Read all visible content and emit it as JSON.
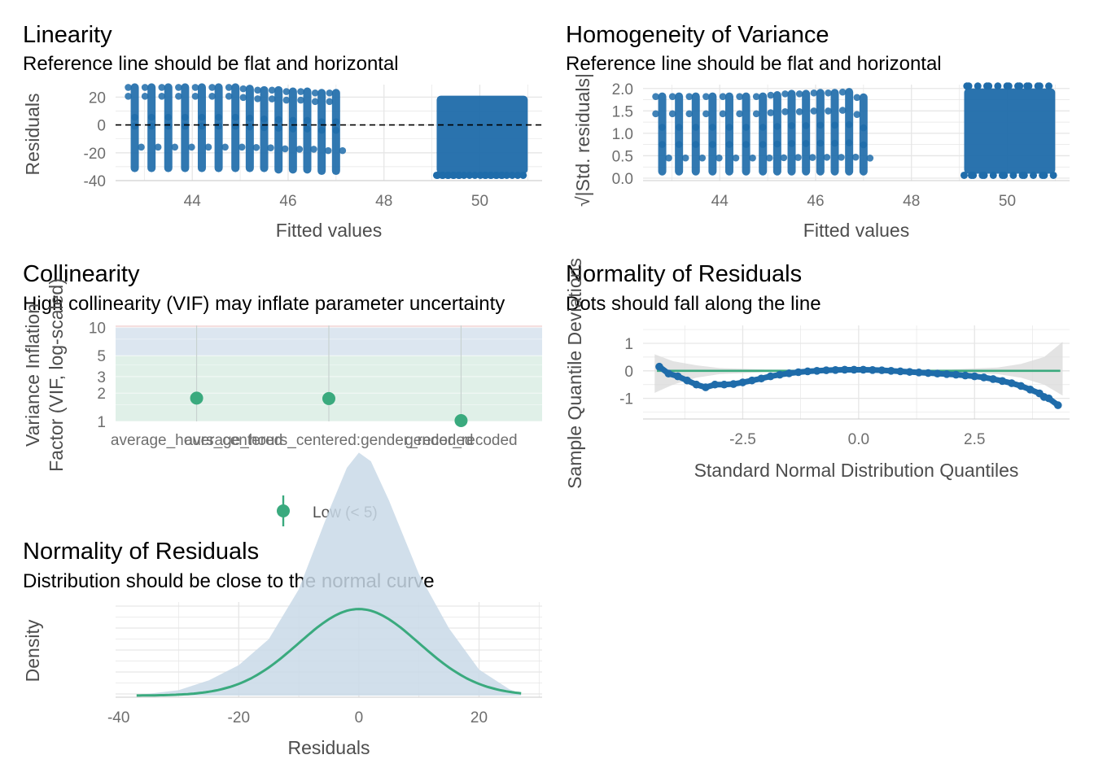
{
  "colors": {
    "point": "#1F6CAA",
    "accent": "#3AAA7E",
    "grid": "#E6E6E6",
    "axis": "#6E6E6E",
    "band_high": "#F4DCDC",
    "band_moderate": "#DCE6F0",
    "band_low": "#E0F0E8",
    "density_fill": "#C9D9E8"
  },
  "chart_data": [
    {
      "id": "linearity",
      "type": "scatter",
      "title": "Linearity",
      "subtitle": "Reference line should be flat and horizontal",
      "xlabel": "Fitted values",
      "ylabel": "Residuals",
      "xlim": [
        42.4,
        51.3
      ],
      "ylim": [
        -40,
        29
      ],
      "xticks": [
        44,
        46,
        48,
        50
      ],
      "yticks": [
        20,
        0,
        -20,
        -40
      ],
      "reference_line_y": 0,
      "point_stripes": [
        {
          "x": 42.8,
          "ymin": -31,
          "ymax": 27
        },
        {
          "x": 43.15,
          "ymin": -31,
          "ymax": 27
        },
        {
          "x": 43.5,
          "ymin": -31,
          "ymax": 27
        },
        {
          "x": 43.85,
          "ymin": -31,
          "ymax": 27
        },
        {
          "x": 44.2,
          "ymin": -31,
          "ymax": 27
        },
        {
          "x": 44.55,
          "ymin": -31,
          "ymax": 27
        },
        {
          "x": 44.9,
          "ymin": -31,
          "ymax": 27
        },
        {
          "x": 45.2,
          "ymin": -31,
          "ymax": 26
        },
        {
          "x": 45.5,
          "ymin": -31,
          "ymax": 25
        },
        {
          "x": 45.8,
          "ymin": -32,
          "ymax": 25
        },
        {
          "x": 46.1,
          "ymin": -32,
          "ymax": 24
        },
        {
          "x": 46.4,
          "ymin": -32,
          "ymax": 24
        },
        {
          "x": 46.7,
          "ymin": -33,
          "ymax": 23
        },
        {
          "x": 47.0,
          "ymin": -33,
          "ymax": 23
        }
      ],
      "point_blocks": [
        {
          "xmin": 49.1,
          "xmax": 51.0,
          "ymin": -35,
          "ymax": 21
        }
      ]
    },
    {
      "id": "homogeneity",
      "type": "scatter",
      "title": "Homogeneity of Variance",
      "subtitle": "Reference line should be flat and horizontal",
      "xlabel": "Fitted values",
      "ylabel": "√|Std. residuals|",
      "xlim": [
        42.4,
        51.3
      ],
      "ylim": [
        0,
        2.05
      ],
      "xticks": [
        44,
        46,
        48,
        50
      ],
      "yticks": [
        2.0,
        1.5,
        1.0,
        0.5,
        0.0
      ],
      "point_stripes": [
        {
          "x": 42.8,
          "ymin": 0.15,
          "ymax": 1.82
        },
        {
          "x": 43.15,
          "ymin": 0.15,
          "ymax": 1.82
        },
        {
          "x": 43.5,
          "ymin": 0.15,
          "ymax": 1.82
        },
        {
          "x": 43.85,
          "ymin": 0.15,
          "ymax": 1.82
        },
        {
          "x": 44.2,
          "ymin": 0.15,
          "ymax": 1.82
        },
        {
          "x": 44.55,
          "ymin": 0.15,
          "ymax": 1.82
        },
        {
          "x": 44.9,
          "ymin": 0.15,
          "ymax": 1.82
        },
        {
          "x": 45.2,
          "ymin": 0.15,
          "ymax": 1.85
        },
        {
          "x": 45.5,
          "ymin": 0.15,
          "ymax": 1.88
        },
        {
          "x": 45.8,
          "ymin": 0.15,
          "ymax": 1.88
        },
        {
          "x": 46.1,
          "ymin": 0.15,
          "ymax": 1.9
        },
        {
          "x": 46.4,
          "ymin": 0.15,
          "ymax": 1.9
        },
        {
          "x": 46.7,
          "ymin": 0.15,
          "ymax": 1.92
        },
        {
          "x": 47.0,
          "ymin": 0.15,
          "ymax": 1.8
        }
      ],
      "point_blocks": [
        {
          "xmin": 49.1,
          "xmax": 51.0,
          "ymin": 0.1,
          "ymax": 2.0
        }
      ]
    },
    {
      "id": "collinearity",
      "type": "scatter",
      "title": "Collinearity",
      "subtitle": "High collinearity (VIF) may inflate parameter uncertainty",
      "xlabel": "",
      "ylabel_lines": [
        "Variance Inflation",
        "Factor (VIF, log-scaled)"
      ],
      "ylim_log": [
        1,
        10.5
      ],
      "yticks": [
        1,
        2,
        3,
        5,
        10
      ],
      "categories": [
        "average_hours_centered",
        "average_hours_centered:gender_recoded",
        "gender_recoded"
      ],
      "values": [
        1.77,
        1.75,
        1.02
      ],
      "bands": [
        {
          "name": "high",
          "from": 10,
          "to": 10.5
        },
        {
          "name": "moderate",
          "from": 5,
          "to": 10
        },
        {
          "name": "low",
          "from": 1,
          "to": 5
        }
      ],
      "legend": {
        "label": "Low (< 5)",
        "placement": "bottom"
      }
    },
    {
      "id": "qq",
      "type": "scatter",
      "title": "Normality of Residuals",
      "subtitle": "Dots should fall along the line",
      "xlabel": "Standard Normal Distribution Quantiles",
      "ylabel": "Sample Quantile Deviations",
      "xlim": [
        -4.65,
        4.55
      ],
      "ylim": [
        -1.75,
        1.65
      ],
      "xticks": [
        -2.5,
        0.0,
        2.5
      ],
      "xticklabels": [
        "-2.5",
        "0.0",
        "2.5"
      ],
      "yticks": [
        1,
        0,
        -1
      ],
      "reference_line_y": 0,
      "points": [
        [
          -4.3,
          0.15
        ],
        [
          -4.1,
          -0.1
        ],
        [
          -3.9,
          -0.2
        ],
        [
          -3.7,
          -0.35
        ],
        [
          -3.5,
          -0.5
        ],
        [
          -3.3,
          -0.6
        ],
        [
          -3.1,
          -0.5
        ],
        [
          -2.9,
          -0.5
        ],
        [
          -2.7,
          -0.48
        ],
        [
          -2.5,
          -0.42
        ],
        [
          -2.3,
          -0.35
        ],
        [
          -2.1,
          -0.28
        ],
        [
          -1.9,
          -0.2
        ],
        [
          -1.7,
          -0.14
        ],
        [
          -1.5,
          -0.09
        ],
        [
          -1.3,
          -0.05
        ],
        [
          -1.1,
          -0.02
        ],
        [
          -0.9,
          0.0
        ],
        [
          -0.7,
          0.02
        ],
        [
          -0.5,
          0.03
        ],
        [
          -0.3,
          0.04
        ],
        [
          -0.1,
          0.04
        ],
        [
          0.1,
          0.04
        ],
        [
          0.3,
          0.03
        ],
        [
          0.5,
          0.02
        ],
        [
          0.7,
          0.0
        ],
        [
          0.9,
          -0.02
        ],
        [
          1.1,
          -0.04
        ],
        [
          1.3,
          -0.06
        ],
        [
          1.5,
          -0.08
        ],
        [
          1.7,
          -0.1
        ],
        [
          1.9,
          -0.12
        ],
        [
          2.1,
          -0.14
        ],
        [
          2.3,
          -0.17
        ],
        [
          2.5,
          -0.2
        ],
        [
          2.7,
          -0.24
        ],
        [
          2.9,
          -0.3
        ],
        [
          3.1,
          -0.37
        ],
        [
          3.3,
          -0.45
        ],
        [
          3.5,
          -0.55
        ],
        [
          3.7,
          -0.68
        ],
        [
          3.9,
          -0.82
        ],
        [
          4.0,
          -0.95
        ],
        [
          4.1,
          -1.0
        ],
        [
          4.3,
          -1.25
        ]
      ],
      "ci_band": [
        [
          -4.4,
          -0.8,
          0.6
        ],
        [
          -4.0,
          -0.5,
          0.35
        ],
        [
          -3.5,
          -0.25,
          0.2
        ],
        [
          -3.0,
          -0.12,
          0.1
        ],
        [
          -2.0,
          -0.05,
          0.05
        ],
        [
          0.0,
          -0.03,
          0.03
        ],
        [
          2.0,
          -0.05,
          0.05
        ],
        [
          3.0,
          -0.12,
          0.12
        ],
        [
          3.5,
          -0.25,
          0.25
        ],
        [
          4.0,
          -0.5,
          0.5
        ],
        [
          4.4,
          -0.9,
          1.05
        ]
      ]
    },
    {
      "id": "density",
      "type": "area",
      "title": "Normality of Residuals",
      "subtitle": "Distribution should be close to the normal curve",
      "xlabel": "Residuals",
      "ylabel": "Density",
      "xlim": [
        -40.5,
        30.5
      ],
      "xticks": [
        -40,
        -20,
        0,
        20
      ],
      "normal": {
        "mean": 0,
        "sd": 10
      },
      "empirical_density": [
        [
          -37,
          0.0002
        ],
        [
          -30,
          0.0025
        ],
        [
          -25,
          0.007
        ],
        [
          -20,
          0.014
        ],
        [
          -15,
          0.026
        ],
        [
          -10,
          0.049
        ],
        [
          -5,
          0.085
        ],
        [
          -2,
          0.105
        ],
        [
          0,
          0.112
        ],
        [
          2,
          0.108
        ],
        [
          5,
          0.09
        ],
        [
          10,
          0.056
        ],
        [
          15,
          0.031
        ],
        [
          20,
          0.012
        ],
        [
          25,
          0.003
        ],
        [
          27,
          0.0008
        ]
      ]
    }
  ]
}
